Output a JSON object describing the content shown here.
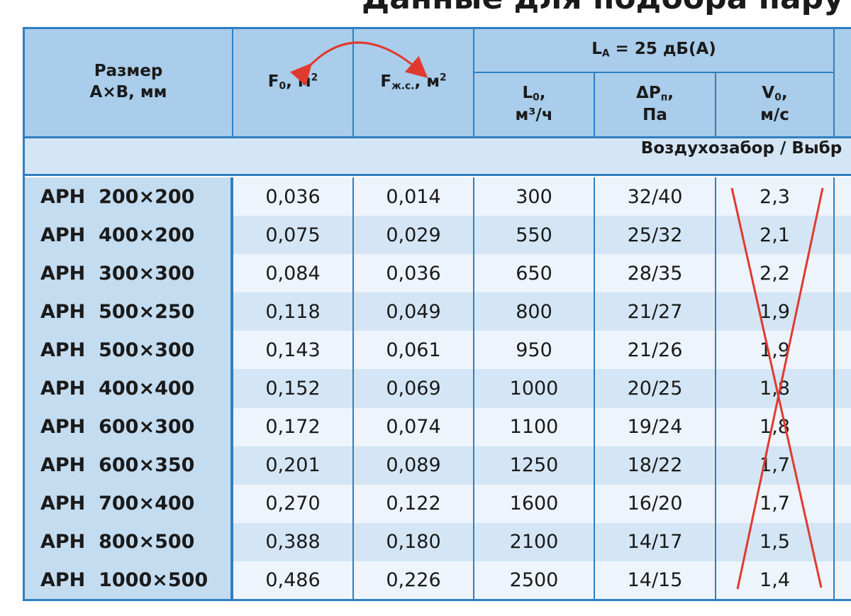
{
  "header": {
    "title": "Данные для подбора пару"
  },
  "table": {
    "size_header": {
      "line1": "Размер",
      "line2": "A×B, мм"
    },
    "f0_header": {
      "symbol": "F",
      "sub": "0",
      "unit": ", м",
      "sup": "2"
    },
    "fjs_header": {
      "symbol": "F",
      "sub": "ж.с.",
      "unit": ", м",
      "sup": "2"
    },
    "la_header": {
      "symbol": "L",
      "sub": "A",
      "text": " = 25 дБ(A)"
    },
    "sub_headers": [
      {
        "symbol": "L",
        "sub": "0",
        "suffix": ",",
        "unit": "м³/ч"
      },
      {
        "symbol": "ΔP",
        "sub": "п",
        "suffix": ",",
        "unit": "Па"
      },
      {
        "symbol": "V",
        "sub": "0",
        "suffix": ",",
        "unit": "м/с"
      }
    ],
    "section": "Воздухозабор / Выбр",
    "rows": [
      [
        "АРН  200×200",
        "0,036",
        "0,014",
        "300",
        "32/40",
        "2,3"
      ],
      [
        "АРН  400×200",
        "0,075",
        "0,029",
        "550",
        "25/32",
        "2,1"
      ],
      [
        "АРН  300×300",
        "0,084",
        "0,036",
        "650",
        "28/35",
        "2,2"
      ],
      [
        "АРН  500×250",
        "0,118",
        "0,049",
        "800",
        "21/27",
        "1,9"
      ],
      [
        "АРН  500×300",
        "0,143",
        "0,061",
        "950",
        "21/26",
        "1,9"
      ],
      [
        "АРН  400×400",
        "0,152",
        "0,069",
        "1000",
        "20/25",
        "1,8"
      ],
      [
        "АРН  600×300",
        "0,172",
        "0,074",
        "1100",
        "19/24",
        "1,8"
      ],
      [
        "АРН  600×350",
        "0,201",
        "0,089",
        "1250",
        "18/22",
        "1,7"
      ],
      [
        "АРН  700×400",
        "0,270",
        "0,122",
        "1600",
        "16/20",
        "1,7"
      ],
      [
        "АРН  800×500",
        "0,388",
        "0,180",
        "2100",
        "14/17",
        "1,5"
      ],
      [
        "АРН  1000×500",
        "0,486",
        "0,226",
        "2500",
        "14/15",
        "1,4"
      ]
    ]
  }
}
